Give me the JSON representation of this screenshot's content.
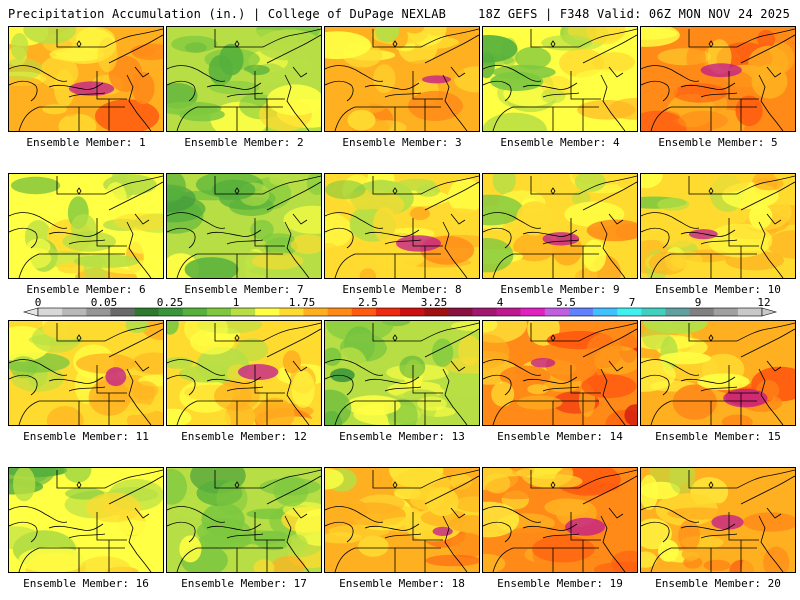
{
  "header": {
    "title": "Precipitation Accumulation (in.) | College of DuPage NEXLAB",
    "run_info": "18Z GEFS | F348 Valid: 06Z MON NOV 24 2025"
  },
  "members": [
    {
      "label": "Ensemble Member: 1",
      "intensity": 0.78
    },
    {
      "label": "Ensemble Member: 2",
      "intensity": 0.3
    },
    {
      "label": "Ensemble Member: 3",
      "intensity": 0.82
    },
    {
      "label": "Ensemble Member: 4",
      "intensity": 0.38
    },
    {
      "label": "Ensemble Member: 5",
      "intensity": 0.85
    },
    {
      "label": "Ensemble Member: 6",
      "intensity": 0.4
    },
    {
      "label": "Ensemble Member: 7",
      "intensity": 0.22
    },
    {
      "label": "Ensemble Member: 8",
      "intensity": 0.62
    },
    {
      "label": "Ensemble Member: 9",
      "intensity": 0.66
    },
    {
      "label": "Ensemble Member: 10",
      "intensity": 0.6
    },
    {
      "label": "Ensemble Member: 11",
      "intensity": 0.58
    },
    {
      "label": "Ensemble Member: 12",
      "intensity": 0.52
    },
    {
      "label": "Ensemble Member: 13",
      "intensity": 0.3
    },
    {
      "label": "Ensemble Member: 14",
      "intensity": 0.9
    },
    {
      "label": "Ensemble Member: 15",
      "intensity": 0.8
    },
    {
      "label": "Ensemble Member: 16",
      "intensity": 0.45
    },
    {
      "label": "Ensemble Member: 17",
      "intensity": 0.2
    },
    {
      "label": "Ensemble Member: 18",
      "intensity": 0.78
    },
    {
      "label": "Ensemble Member: 19",
      "intensity": 0.88
    },
    {
      "label": "Ensemble Member: 20",
      "intensity": 0.72
    }
  ],
  "colorbar": {
    "tick_labels": [
      "0",
      "0.05",
      "0.25",
      "1",
      "1.75",
      "2.5",
      "3.25",
      "4",
      "5.5",
      "7",
      "9",
      "12"
    ],
    "colors": [
      "#d8d8d8",
      "#b8b8b8",
      "#969696",
      "#6a6a6a",
      "#2f7a2f",
      "#3b963b",
      "#55b03c",
      "#7ec840",
      "#b7df45",
      "#ffff44",
      "#ffdb30",
      "#ffb020",
      "#ff8a18",
      "#ff5a10",
      "#ee2a10",
      "#cc1010",
      "#a01010",
      "#8a1040",
      "#a01870",
      "#c01890",
      "#e020c0",
      "#c060e0",
      "#6080ff",
      "#40c0ff",
      "#40f0f0",
      "#40d0c0",
      "#60a0a0",
      "#808080",
      "#a0a0a0",
      "#c8c8c8"
    ]
  }
}
